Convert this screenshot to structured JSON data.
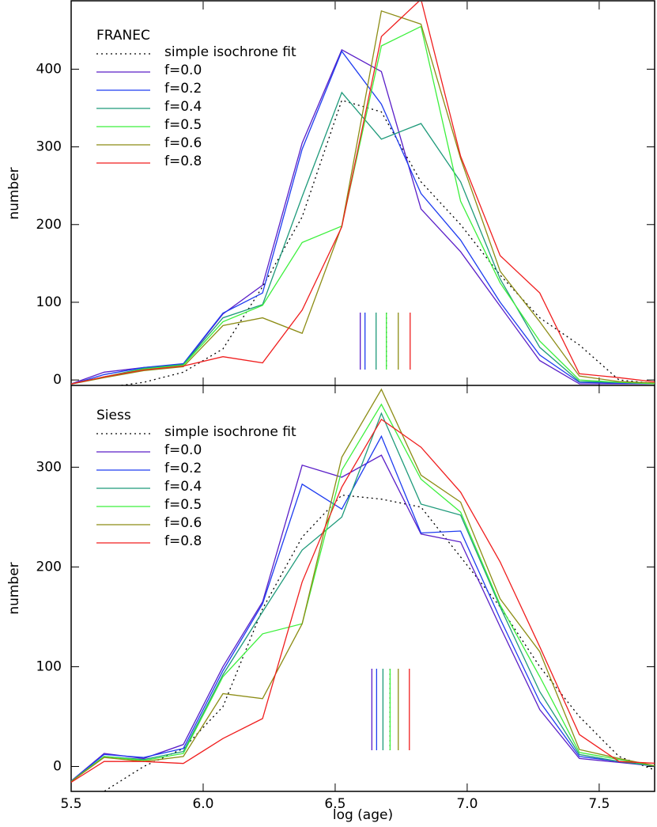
{
  "chart_data": [
    {
      "type": "line",
      "legend_title": "FRANEC",
      "ylabel": "number",
      "x": [
        5.475,
        5.625,
        5.775,
        5.925,
        6.075,
        6.225,
        6.375,
        6.525,
        6.675,
        6.825,
        6.975,
        7.125,
        7.275,
        7.425,
        7.575,
        7.725
      ],
      "xlim": [
        5.5,
        7.71
      ],
      "xticks": [
        5.5,
        6,
        6.5,
        7,
        7.5
      ],
      "ylim": [
        -7,
        487
      ],
      "yticks": [
        0,
        100,
        200,
        300,
        400
      ],
      "legend": "upper left",
      "series": [
        {
          "name": "simple isochrone fit",
          "color": "#000000",
          "style": "dotted",
          "median": 6.694,
          "values": [
            -10,
            -10,
            -3,
            10,
            40,
            120,
            210,
            360,
            345,
            255,
            200,
            135,
            80,
            45,
            0,
            -5
          ]
        },
        {
          "name": "f=0.0",
          "color": "#5a1ec8",
          "median": 6.595,
          "values": [
            -8,
            10,
            16,
            20,
            85,
            122,
            305,
            425,
            397,
            220,
            165,
            95,
            25,
            -5,
            -5,
            -5
          ]
        },
        {
          "name": "f=0.2",
          "color": "#1e3cf0",
          "median": 6.613,
          "values": [
            -8,
            7,
            16,
            21,
            86,
            112,
            297,
            423,
            355,
            240,
            180,
            100,
            32,
            -3,
            -4,
            -5
          ]
        },
        {
          "name": "f=0.4",
          "color": "#1e9a7a",
          "median": 6.655,
          "values": [
            -7,
            4,
            15,
            20,
            80,
            97,
            236,
            370,
            310,
            330,
            255,
            130,
            42,
            -2,
            -3,
            -5
          ]
        },
        {
          "name": "f=0.5",
          "color": "#3cf03c",
          "median": 6.694,
          "values": [
            -7,
            4,
            14,
            19,
            75,
            96,
            177,
            198,
            430,
            455,
            230,
            125,
            50,
            0,
            -3,
            -5
          ]
        },
        {
          "name": "f=0.6",
          "color": "#8c8c14",
          "median": 6.739,
          "values": [
            -7,
            3,
            12,
            17,
            70,
            80,
            60,
            198,
            475,
            458,
            285,
            140,
            75,
            5,
            -2,
            -4
          ]
        },
        {
          "name": "f=0.8",
          "color": "#f01e1e",
          "median": 6.784,
          "values": [
            -7,
            4,
            13,
            18,
            30,
            22,
            90,
            197,
            442,
            490,
            288,
            160,
            112,
            8,
            3,
            -3
          ]
        }
      ]
    },
    {
      "type": "line",
      "legend_title": "Siess",
      "ylabel": "number",
      "xlabel": "log (age)",
      "x": [
        5.475,
        5.625,
        5.775,
        5.925,
        6.075,
        6.225,
        6.375,
        6.525,
        6.675,
        6.825,
        6.975,
        7.125,
        7.275,
        7.425,
        7.575,
        7.725
      ],
      "xlim": [
        5.5,
        7.71
      ],
      "xticks": [
        5.5,
        {
          "value": 6,
          "label": "6.0"
        },
        6.5,
        {
          "value": 7,
          "label": "7.0"
        },
        7.5
      ],
      "ylim": [
        -25,
        382
      ],
      "yticks": [
        0,
        100,
        200,
        300
      ],
      "legend": "upper left",
      "series": [
        {
          "name": "simple isochrone fit",
          "color": "#000000",
          "style": "dotted",
          "median": 6.708,
          "values": [
            -40,
            -25,
            0,
            18,
            60,
            158,
            230,
            272,
            268,
            260,
            210,
            160,
            100,
            50,
            10,
            -5
          ]
        },
        {
          "name": "f=0.0",
          "color": "#5a1ec8",
          "median": 6.639,
          "values": [
            -20,
            13,
            8,
            22,
            100,
            165,
            302,
            290,
            312,
            233,
            225,
            140,
            57,
            8,
            4,
            0
          ]
        },
        {
          "name": "f=0.2",
          "color": "#1e3cf0",
          "median": 6.657,
          "values": [
            -20,
            12,
            9,
            18,
            96,
            163,
            283,
            258,
            331,
            234,
            236,
            148,
            65,
            10,
            5,
            0
          ]
        },
        {
          "name": "f=0.4",
          "color": "#1e9a7a",
          "median": 6.681,
          "values": [
            -20,
            10,
            7,
            15,
            92,
            155,
            217,
            250,
            354,
            263,
            252,
            160,
            75,
            12,
            5,
            0
          ]
        },
        {
          "name": "f=0.5",
          "color": "#3cf03c",
          "median": 6.708,
          "values": [
            -20,
            10,
            6,
            13,
            90,
            133,
            143,
            297,
            363,
            288,
            255,
            162,
            90,
            14,
            7,
            0
          ]
        },
        {
          "name": "f=0.6",
          "color": "#8c8c14",
          "median": 6.739,
          "values": [
            -20,
            9,
            5,
            10,
            73,
            68,
            143,
            310,
            378,
            292,
            265,
            168,
            115,
            17,
            8,
            0
          ]
        },
        {
          "name": "f=0.8",
          "color": "#f01e1e",
          "median": 6.781,
          "values": [
            -20,
            5,
            5,
            3,
            28,
            48,
            185,
            280,
            348,
            320,
            275,
            205,
            120,
            32,
            5,
            3
          ]
        }
      ]
    }
  ]
}
